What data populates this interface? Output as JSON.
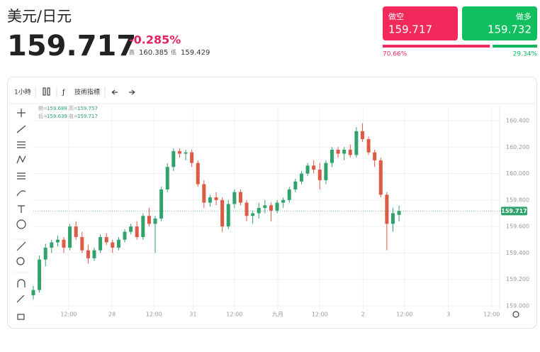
{
  "header": {
    "pair": "美元/日元",
    "price": "159.717",
    "change": "-0.285%",
    "high_label": "高",
    "high": "160.385",
    "low_label": "低",
    "low": "159.429"
  },
  "trade": {
    "sell": {
      "label": "做空",
      "price": "159.717"
    },
    "buy": {
      "label": "做多",
      "price": "159.732"
    }
  },
  "sentiment": {
    "values": [
      70.66,
      29.34
    ],
    "value_labels": [
      "70.66%",
      "29.34%"
    ],
    "colors": [
      "#ee2a5c",
      "#10b75f"
    ]
  },
  "toolbar": {
    "interval": "1小時",
    "indicators": "技術指標"
  },
  "chart_data": {
    "type": "candlestick",
    "up_color": "#2fa36b",
    "down_color": "#dd5a44",
    "ohlc_labels": [
      "開=",
      "高=",
      "低=",
      "收="
    ],
    "candles": [
      [
        159.08,
        159.15,
        159.05,
        159.12
      ],
      [
        159.12,
        159.38,
        159.1,
        159.35
      ],
      [
        159.35,
        159.47,
        159.3,
        159.44
      ],
      [
        159.44,
        159.5,
        159.4,
        159.48
      ],
      [
        159.48,
        159.53,
        159.45,
        159.5
      ],
      [
        159.5,
        159.52,
        159.4,
        159.44
      ],
      [
        159.44,
        159.62,
        159.42,
        159.6
      ],
      [
        159.6,
        159.64,
        159.5,
        159.52
      ],
      [
        159.52,
        159.56,
        159.4,
        159.42
      ],
      [
        159.42,
        159.46,
        159.32,
        159.36
      ],
      [
        159.36,
        159.44,
        159.34,
        159.42
      ],
      [
        159.42,
        159.54,
        159.4,
        159.52
      ],
      [
        159.52,
        159.55,
        159.46,
        159.48
      ],
      [
        159.48,
        159.5,
        159.4,
        159.44
      ],
      [
        159.44,
        159.52,
        159.42,
        159.5
      ],
      [
        159.5,
        159.58,
        159.48,
        159.56
      ],
      [
        159.56,
        159.62,
        159.54,
        159.6
      ],
      [
        159.6,
        159.64,
        159.5,
        159.52
      ],
      [
        159.52,
        159.7,
        159.5,
        159.68
      ],
      [
        159.68,
        159.74,
        159.6,
        159.62
      ],
      [
        159.62,
        159.68,
        159.4,
        159.66
      ],
      [
        159.66,
        159.9,
        159.64,
        159.88
      ],
      [
        159.88,
        160.08,
        159.86,
        160.05
      ],
      [
        160.05,
        160.19,
        160.02,
        160.17
      ],
      [
        160.17,
        160.19,
        160.12,
        160.15
      ],
      [
        160.15,
        160.18,
        160.1,
        160.16
      ],
      [
        160.16,
        160.18,
        160.05,
        160.08
      ],
      [
        160.08,
        160.1,
        159.9,
        159.92
      ],
      [
        159.92,
        159.95,
        159.74,
        159.78
      ],
      [
        159.78,
        159.84,
        159.75,
        159.82
      ],
      [
        159.82,
        159.86,
        159.76,
        159.8
      ],
      [
        159.8,
        159.82,
        159.56,
        159.6
      ],
      [
        159.6,
        159.8,
        159.58,
        159.77
      ],
      [
        159.77,
        159.88,
        159.74,
        159.86
      ],
      [
        159.86,
        159.88,
        159.76,
        159.78
      ],
      [
        159.78,
        159.8,
        159.64,
        159.68
      ],
      [
        159.68,
        159.72,
        159.62,
        159.7
      ],
      [
        159.7,
        159.78,
        159.66,
        159.74
      ],
      [
        159.74,
        159.8,
        159.7,
        159.76
      ],
      [
        159.76,
        159.78,
        159.64,
        159.72
      ],
      [
        159.72,
        159.8,
        159.7,
        159.78
      ],
      [
        159.78,
        159.82,
        159.74,
        159.8
      ],
      [
        159.8,
        159.9,
        159.78,
        159.88
      ],
      [
        159.88,
        159.96,
        159.86,
        159.94
      ],
      [
        159.94,
        160.02,
        159.92,
        160.0
      ],
      [
        160.0,
        160.08,
        159.98,
        160.06
      ],
      [
        160.06,
        160.1,
        160.0,
        160.03
      ],
      [
        160.03,
        160.08,
        159.88,
        159.95
      ],
      [
        159.95,
        160.1,
        159.92,
        160.08
      ],
      [
        160.08,
        160.2,
        160.05,
        160.18
      ],
      [
        160.18,
        160.2,
        160.12,
        160.15
      ],
      [
        160.15,
        160.2,
        160.1,
        160.18
      ],
      [
        160.18,
        160.22,
        160.12,
        160.14
      ],
      [
        160.14,
        160.35,
        160.12,
        160.32
      ],
      [
        160.32,
        160.38,
        160.24,
        160.26
      ],
      [
        160.26,
        160.28,
        160.14,
        160.16
      ],
      [
        160.16,
        160.18,
        160.05,
        160.1
      ],
      [
        160.1,
        160.12,
        159.82,
        159.84
      ],
      [
        159.84,
        159.86,
        159.42,
        159.62
      ],
      [
        159.62,
        159.74,
        159.56,
        159.7
      ],
      [
        159.688,
        159.757,
        159.639,
        159.717
      ]
    ],
    "xlim": [
      0,
      76.5
    ],
    "xticks": [
      {
        "value": 5.8,
        "label": "12:00"
      },
      {
        "value": 12.9,
        "label": "28"
      },
      {
        "value": 19.8,
        "label": "12:00"
      },
      {
        "value": 26.2,
        "label": "31"
      },
      {
        "value": 33.0,
        "label": "12:00"
      },
      {
        "value": 40.1,
        "label": "九月"
      },
      {
        "value": 47.0,
        "label": "12:00"
      },
      {
        "value": 54.1,
        "label": "2"
      },
      {
        "value": 60.9,
        "label": "12:00"
      },
      {
        "value": 68.1,
        "label": "3"
      },
      {
        "value": 75.2,
        "label": "12:00"
      }
    ],
    "ylim": [
      158.968,
      160.507
    ],
    "yticks": [
      {
        "value": 159.0,
        "label": "159.000"
      },
      {
        "value": 159.2,
        "label": "159.200"
      },
      {
        "value": 159.4,
        "label": "159.400"
      },
      {
        "value": 159.6,
        "label": "159.600"
      },
      {
        "value": 159.8,
        "label": "159.800"
      },
      {
        "value": 160.0,
        "label": "160.000"
      },
      {
        "value": 160.2,
        "label": "160.200"
      },
      {
        "value": 160.4,
        "label": "160.400"
      }
    ],
    "grid": true
  }
}
